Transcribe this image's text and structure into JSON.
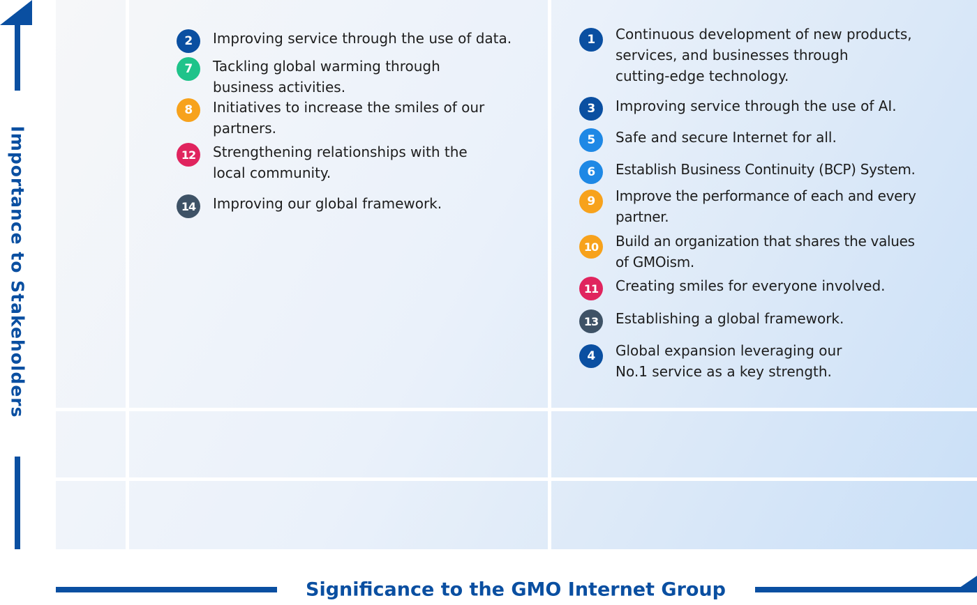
{
  "colors": {
    "dark_blue": "#0a4fa1",
    "sky_blue": "#1e88e5",
    "green": "#1fc38a",
    "orange": "#f7a21c",
    "crimson": "#e0245e",
    "slate": "#3e5266",
    "axis": "#0a4fa1"
  },
  "axes": {
    "y_label": "Importance to Stakeholders",
    "x_label": "Significance to the GMO Internet Group"
  },
  "left_quadrant": {
    "items": [
      {
        "num": "2",
        "text": "Improving service through the use of data.",
        "color": "#0a4fa1"
      },
      {
        "num": "7",
        "text": "Tackling global warming through\nbusiness activities.",
        "color": "#1fc38a"
      },
      {
        "num": "8",
        "text": "Initiatives to increase the smiles of our\npartners.",
        "color": "#f7a21c"
      },
      {
        "num": "12",
        "text": "Strengthening relationships with the\nlocal community.",
        "color": "#e0245e"
      },
      {
        "num": "14",
        "text": "Improving our global framework.",
        "color": "#3e5266"
      }
    ]
  },
  "right_quadrant": {
    "items": [
      {
        "num": "1",
        "text": "Continuous development of new products,\nservices, and businesses through\ncutting-edge technology.",
        "color": "#0a4fa1"
      },
      {
        "num": "3",
        "text": "Improving service through the use of AI.",
        "color": "#0a4fa1"
      },
      {
        "num": "5",
        "text": "Safe and secure Internet for all.",
        "color": "#1e88e5"
      },
      {
        "num": "6",
        "text": "Establish Business Continuity (BCP) System.",
        "color": "#1e88e5"
      },
      {
        "num": "9",
        "text": "Improve the performance of each and every\npartner.",
        "color": "#f7a21c"
      },
      {
        "num": "10",
        "text": "Build an organization that shares the values\nof GMOism.",
        "color": "#f7a21c"
      },
      {
        "num": "11",
        "text": "Creating smiles for everyone involved.",
        "color": "#e0245e"
      },
      {
        "num": "13",
        "text": "Establishing a global framework.",
        "color": "#3e5266"
      },
      {
        "num": "4",
        "text": "Global expansion leveraging our\nNo.1 service as a key strength.",
        "color": "#0a4fa1"
      }
    ]
  }
}
